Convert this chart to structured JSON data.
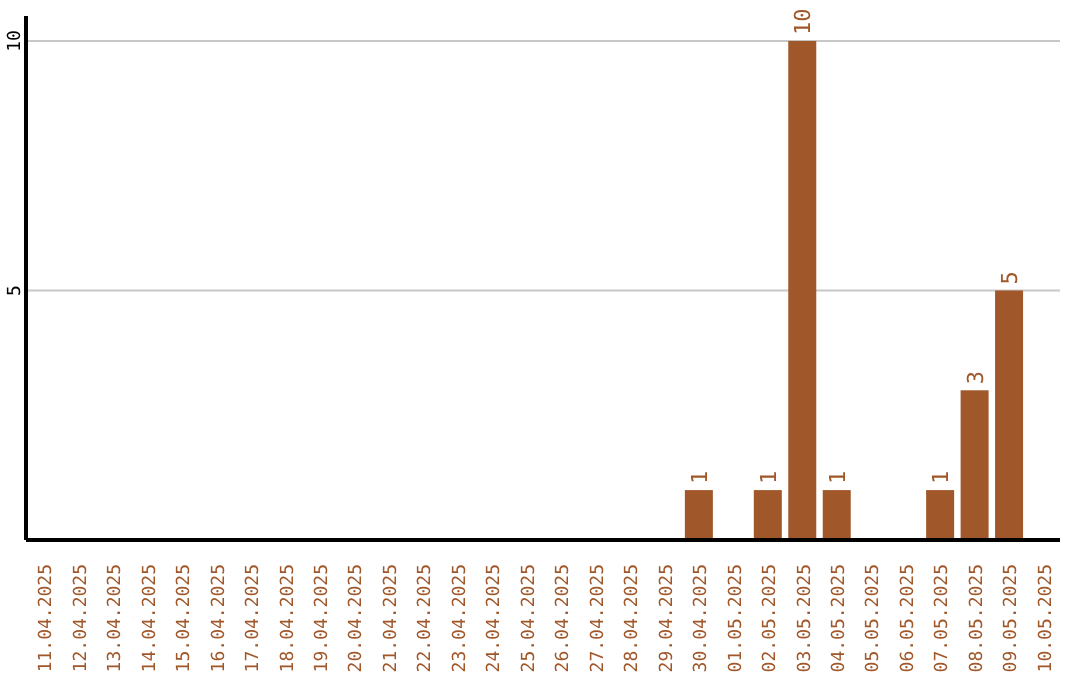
{
  "chart_data": {
    "type": "bar",
    "categories": [
      "11.04.2025",
      "12.04.2025",
      "13.04.2025",
      "14.04.2025",
      "15.04.2025",
      "16.04.2025",
      "17.04.2025",
      "18.04.2025",
      "19.04.2025",
      "20.04.2025",
      "21.04.2025",
      "22.04.2025",
      "23.04.2025",
      "24.04.2025",
      "25.04.2025",
      "26.04.2025",
      "27.04.2025",
      "28.04.2025",
      "29.04.2025",
      "30.04.2025",
      "01.05.2025",
      "02.05.2025",
      "03.05.2025",
      "04.05.2025",
      "05.05.2025",
      "06.05.2025",
      "07.05.2025",
      "08.05.2025",
      "09.05.2025",
      "10.05.2025"
    ],
    "values": [
      0,
      0,
      0,
      0,
      0,
      0,
      0,
      0,
      0,
      0,
      0,
      0,
      0,
      0,
      0,
      0,
      0,
      0,
      0,
      1,
      0,
      1,
      10,
      1,
      0,
      0,
      1,
      3,
      5,
      0
    ],
    "value_labels": [
      null,
      null,
      null,
      null,
      null,
      null,
      null,
      null,
      null,
      null,
      null,
      null,
      null,
      null,
      null,
      null,
      null,
      null,
      null,
      "1",
      null,
      "1",
      "10",
      "1",
      null,
      null,
      "1",
      "3",
      "5",
      null
    ],
    "color": "#a0572a",
    "ylim": [
      0,
      10.5
    ],
    "yticks": [
      5,
      10
    ],
    "grid": "y"
  }
}
